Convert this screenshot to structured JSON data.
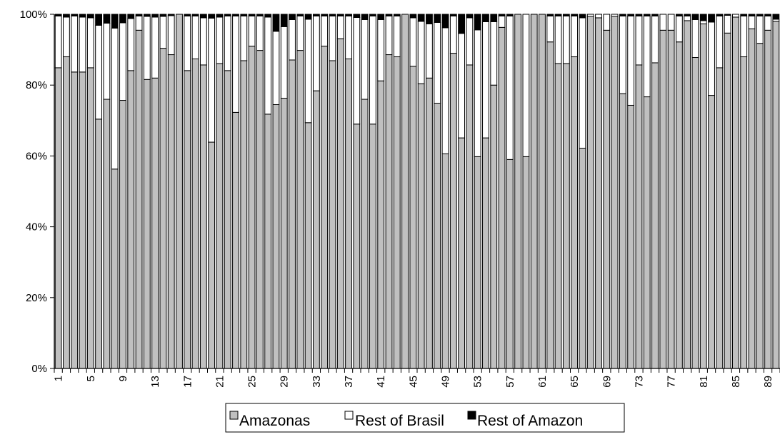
{
  "chart_data": {
    "type": "bar",
    "stacked": true,
    "percent": true,
    "title": "",
    "xlabel": "",
    "ylabel": "",
    "ylim": [
      0,
      100
    ],
    "yticks": [
      0,
      20,
      40,
      60,
      80,
      100
    ],
    "ytick_format": "{v}%",
    "x_label_every": 4,
    "x_label_rotation": -90,
    "categories": [
      "1",
      "2",
      "3",
      "4",
      "5",
      "6",
      "7",
      "8",
      "9",
      "10",
      "11",
      "12",
      "13",
      "14",
      "15",
      "16",
      "17",
      "18",
      "19",
      "20",
      "21",
      "22",
      "23",
      "24",
      "25",
      "26",
      "27",
      "28",
      "29",
      "30",
      "31",
      "32",
      "33",
      "34",
      "35",
      "36",
      "37",
      "38",
      "39",
      "40",
      "41",
      "42",
      "43",
      "44",
      "45",
      "46",
      "47",
      "48",
      "49",
      "50",
      "51",
      "52",
      "53",
      "54",
      "55",
      "56",
      "57",
      "58",
      "59",
      "60",
      "61",
      "62",
      "63",
      "64",
      "65",
      "66",
      "67",
      "68",
      "69",
      "70",
      "71",
      "72",
      "73",
      "74",
      "75",
      "76",
      "77",
      "78",
      "79",
      "80",
      "81",
      "82",
      "83",
      "84",
      "85",
      "86",
      "87",
      "88",
      "89",
      "90"
    ],
    "series": [
      {
        "name": "Amazonas",
        "color": "#c0c0c0",
        "values": [
          84.9,
          88,
          83.7,
          83.7,
          84.9,
          70.4,
          76,
          56.3,
          75.7,
          84.1,
          95.5,
          81.6,
          82,
          90.4,
          88.6,
          100,
          84.1,
          87.4,
          85.7,
          63.9,
          86.1,
          84.1,
          72.3,
          86.9,
          91,
          89.8,
          71.8,
          74.5,
          76.3,
          87.1,
          89.8,
          69.4,
          78.4,
          91,
          86.9,
          93.1,
          87.4,
          69,
          76,
          69,
          81.2,
          88.6,
          88,
          100,
          85.3,
          80.4,
          82,
          74.9,
          60.6,
          89,
          65.1,
          85.7,
          59.8,
          65.1,
          80,
          96.3,
          59,
          100,
          59.8,
          100,
          100,
          92.2,
          86.1,
          86.1,
          88,
          62.2,
          99.4,
          99,
          95.5,
          99.4,
          77.6,
          74.3,
          85.7,
          76.7,
          86.3,
          95.5,
          95.5,
          92.2,
          98.2,
          87.8,
          97.3,
          77.1,
          84.9,
          94.7,
          99.2,
          88,
          95.9,
          91.8,
          95.5,
          98
        ]
      },
      {
        "name": "Rest of Brasil",
        "color": "#ffffff",
        "values": [
          14.6,
          11.2,
          15.8,
          15.5,
          14.1,
          26.5,
          21.5,
          39.8,
          21.9,
          14.7,
          4,
          17.8,
          17.2,
          9,
          11,
          0,
          15.4,
          12.1,
          13.3,
          35,
          13.1,
          15.4,
          27.2,
          12.6,
          8.5,
          9.7,
          27.4,
          20.7,
          20.2,
          11.4,
          9.7,
          29.2,
          21.1,
          8.5,
          12.6,
          6.4,
          12.1,
          30.1,
          22.5,
          30.5,
          17.3,
          10.9,
          11.5,
          0,
          13.7,
          17.6,
          15.3,
          22.8,
          35.6,
          10.5,
          29.5,
          13.3,
          35.8,
          32.8,
          17.9,
          3.2,
          40.5,
          0,
          40.2,
          0,
          0,
          7.3,
          13.4,
          13.4,
          11.5,
          36.8,
          0.6,
          1,
          4.5,
          0.6,
          21.9,
          25.2,
          13.8,
          22.8,
          13.2,
          4.5,
          4.5,
          7.3,
          1.3,
          10.7,
          0.9,
          20.7,
          14.6,
          5,
          0.8,
          11.5,
          3.6,
          7.7,
          4,
          0.6
        ]
      },
      {
        "name": "Rest of Amazon",
        "color": "#000000",
        "values": [
          0.5,
          0.8,
          0.5,
          0.8,
          1,
          3.1,
          2.5,
          3.9,
          2.4,
          1.2,
          0.5,
          0.6,
          0.8,
          0.6,
          0.4,
          0,
          0.5,
          0.5,
          1,
          1.1,
          0.8,
          0.5,
          0.5,
          0.5,
          0.5,
          0.5,
          0.8,
          4.8,
          3.5,
          1.5,
          0.5,
          1.4,
          0.5,
          0.5,
          0.5,
          0.5,
          0.5,
          0.9,
          1.5,
          0.5,
          1.5,
          0.5,
          0.5,
          0,
          1,
          2,
          2.7,
          2.3,
          3.8,
          0.5,
          5.4,
          1,
          4.4,
          2.1,
          2.1,
          0.5,
          0.5,
          0,
          0,
          0,
          0,
          0.5,
          0.5,
          0.5,
          0.5,
          1,
          0,
          0,
          0,
          0,
          0.5,
          0.5,
          0.5,
          0.5,
          0.5,
          0,
          0,
          0.5,
          0.5,
          1.5,
          1.8,
          2.2,
          0.5,
          0.3,
          0,
          0.5,
          0.5,
          0.5,
          0.5,
          1.4
        ]
      }
    ],
    "legend": {
      "position": "bottom",
      "entries": [
        "Amazonas",
        "Rest of Brasil",
        "Rest of Amazon"
      ]
    },
    "grid": false
  }
}
